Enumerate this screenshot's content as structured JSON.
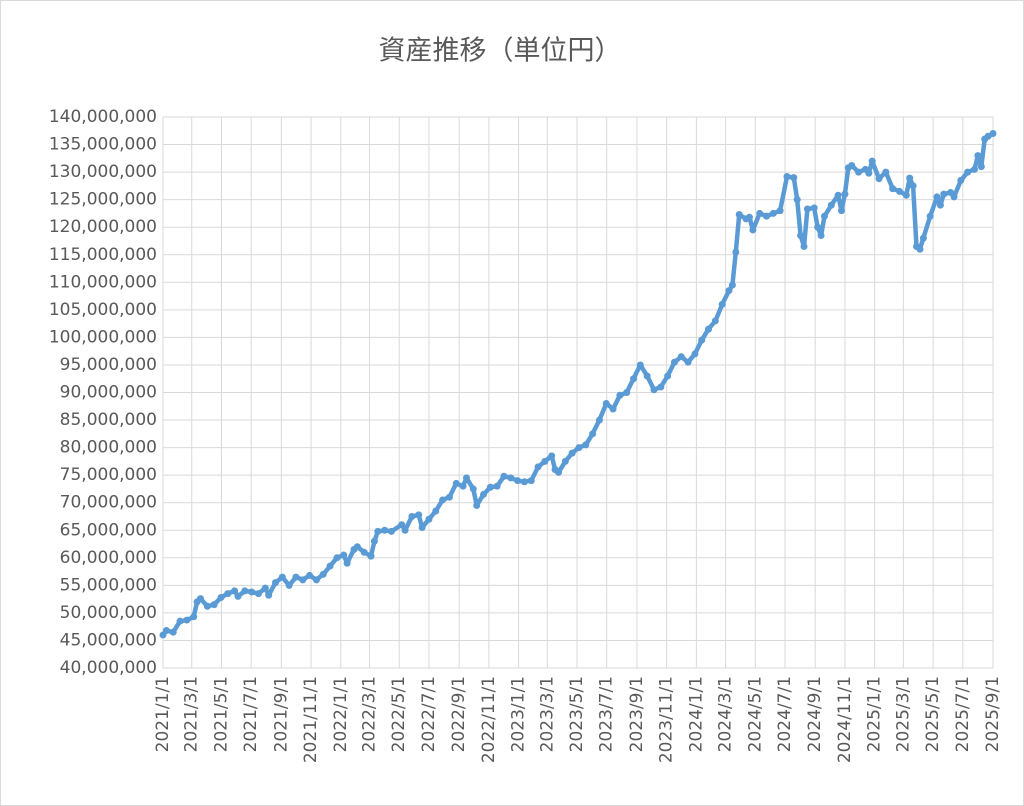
{
  "chart_data": {
    "type": "line",
    "title": "資産推移（単位円）",
    "color": "#5b9bd5",
    "grid": true,
    "x": [
      "2021/1/1",
      "2021/1/8",
      "2021/1/22",
      "2021/2/5",
      "2021/2/19",
      "2021/3/5",
      "2021/3/12",
      "2021/3/19",
      "2021/4/2",
      "2021/4/16",
      "2021/4/30",
      "2021/5/14",
      "2021/5/28",
      "2021/6/4",
      "2021/6/18",
      "2021/7/2",
      "2021/7/16",
      "2021/7/30",
      "2021/8/6",
      "2021/8/20",
      "2021/9/3",
      "2021/9/17",
      "2021/10/1",
      "2021/10/15",
      "2021/10/29",
      "2021/11/12",
      "2021/11/26",
      "2021/12/10",
      "2021/12/24",
      "2022/1/7",
      "2022/1/14",
      "2022/1/28",
      "2022/2/4",
      "2022/2/18",
      "2022/3/4",
      "2022/3/11",
      "2022/3/18",
      "2022/4/1",
      "2022/4/15",
      "2022/5/6",
      "2022/5/13",
      "2022/5/27",
      "2022/6/10",
      "2022/6/17",
      "2022/7/1",
      "2022/7/15",
      "2022/7/29",
      "2022/8/12",
      "2022/8/26",
      "2022/9/9",
      "2022/9/16",
      "2022/9/30",
      "2022/10/7",
      "2022/10/21",
      "2022/11/4",
      "2022/11/18",
      "2022/12/2",
      "2022/12/16",
      "2022/12/30",
      "2023/1/13",
      "2023/1/27",
      "2023/2/10",
      "2023/2/24",
      "2023/3/10",
      "2023/3/17",
      "2023/3/24",
      "2023/4/7",
      "2023/4/21",
      "2023/5/5",
      "2023/5/19",
      "2023/6/2",
      "2023/6/16",
      "2023/6/30",
      "2023/7/14",
      "2023/7/28",
      "2023/8/11",
      "2023/8/25",
      "2023/9/8",
      "2023/9/22",
      "2023/10/6",
      "2023/10/20",
      "2023/11/3",
      "2023/11/17",
      "2023/12/1",
      "2023/12/15",
      "2023/12/29",
      "2024/1/12",
      "2024/1/26",
      "2024/2/9",
      "2024/2/23",
      "2024/3/8",
      "2024/3/15",
      "2024/3/22",
      "2024/3/29",
      "2024/4/12",
      "2024/4/19",
      "2024/4/26",
      "2024/5/10",
      "2024/5/24",
      "2024/6/7",
      "2024/6/21",
      "2024/7/5",
      "2024/7/19",
      "2024/7/26",
      "2024/8/2",
      "2024/8/9",
      "2024/8/16",
      "2024/8/30",
      "2024/9/6",
      "2024/9/13",
      "2024/9/20",
      "2024/10/4",
      "2024/10/18",
      "2024/10/25",
      "2024/11/1",
      "2024/11/8",
      "2024/11/15",
      "2024/11/29",
      "2024/12/13",
      "2024/12/20",
      "2024/12/27",
      "2025/1/10",
      "2025/1/24",
      "2025/2/7",
      "2025/2/21",
      "2025/3/7",
      "2025/3/14",
      "2025/3/21",
      "2025/3/28",
      "2025/4/4",
      "2025/4/11",
      "2025/4/25",
      "2025/5/9",
      "2025/5/16",
      "2025/5/23",
      "2025/6/6",
      "2025/6/13",
      "2025/6/27",
      "2025/7/11",
      "2025/7/25",
      "2025/8/1",
      "2025/8/8",
      "2025/8/15",
      "2025/8/22",
      "2025/9/1"
    ],
    "values": [
      46000000,
      46800000,
      46500000,
      48500000,
      48700000,
      49300000,
      52000000,
      52600000,
      51200000,
      51500000,
      52800000,
      53500000,
      54000000,
      53000000,
      54000000,
      53800000,
      53500000,
      54500000,
      53200000,
      55500000,
      56500000,
      55000000,
      56500000,
      56000000,
      56800000,
      56000000,
      57000000,
      58500000,
      60000000,
      60500000,
      59000000,
      61500000,
      62000000,
      61000000,
      60300000,
      63000000,
      64800000,
      65000000,
      64800000,
      66000000,
      65000000,
      67500000,
      67800000,
      65500000,
      67000000,
      68500000,
      70500000,
      71000000,
      73500000,
      73000000,
      74500000,
      72500000,
      69500000,
      71500000,
      72800000,
      73000000,
      74800000,
      74500000,
      74000000,
      73800000,
      74000000,
      76500000,
      77500000,
      78500000,
      76000000,
      75500000,
      77500000,
      79000000,
      80000000,
      80500000,
      82500000,
      85000000,
      88000000,
      87000000,
      89500000,
      90000000,
      92500000,
      95000000,
      93000000,
      90500000,
      91000000,
      93000000,
      95500000,
      96500000,
      95500000,
      97000000,
      99500000,
      101500000,
      103000000,
      106000000,
      108500000,
      109500000,
      115500000,
      122300000,
      121500000,
      121800000,
      119500000,
      122500000,
      122000000,
      122500000,
      123000000,
      129200000,
      129000000,
      125000000,
      118500000,
      116500000,
      123300000,
      123500000,
      120000000,
      118500000,
      122000000,
      124000000,
      125800000,
      123000000,
      126000000,
      130800000,
      131200000,
      130000000,
      130500000,
      129800000,
      132000000,
      128800000,
      130000000,
      127000000,
      126500000,
      125800000,
      128900000,
      127500000,
      116500000,
      116000000,
      118000000,
      122000000,
      125500000,
      124000000,
      126000000,
      126300000,
      125500000,
      128500000,
      130000000,
      130500000,
      133000000,
      131000000,
      136000000,
      136500000,
      137000000
    ],
    "xlim": [
      "2021/1/1",
      "2025/9/1"
    ],
    "xticks": [
      "2021/1/1",
      "2021/3/1",
      "2021/5/1",
      "2021/7/1",
      "2021/9/1",
      "2021/11/1",
      "2022/1/1",
      "2022/3/1",
      "2022/5/1",
      "2022/7/1",
      "2022/9/1",
      "2022/11/1",
      "2023/1/1",
      "2023/3/1",
      "2023/5/1",
      "2023/7/1",
      "2023/9/1",
      "2023/11/1",
      "2024/1/1",
      "2024/3/1",
      "2024/5/1",
      "2024/7/1",
      "2024/9/1",
      "2024/11/1",
      "2025/1/1",
      "2025/3/1",
      "2025/5/1",
      "2025/7/1",
      "2025/9/1"
    ],
    "ylim": [
      40000000,
      140000000
    ],
    "yticks": [
      {
        "value": 40000000,
        "label": "40,000,000"
      },
      {
        "value": 45000000,
        "label": "45,000,000"
      },
      {
        "value": 50000000,
        "label": "50,000,000"
      },
      {
        "value": 55000000,
        "label": "55,000,000"
      },
      {
        "value": 60000000,
        "label": "60,000,000"
      },
      {
        "value": 65000000,
        "label": "65,000,000"
      },
      {
        "value": 70000000,
        "label": "70,000,000"
      },
      {
        "value": 75000000,
        "label": "75,000,000"
      },
      {
        "value": 80000000,
        "label": "80,000,000"
      },
      {
        "value": 85000000,
        "label": "85,000,000"
      },
      {
        "value": 90000000,
        "label": "90,000,000"
      },
      {
        "value": 95000000,
        "label": "95,000,000"
      },
      {
        "value": 100000000,
        "label": "100,000,000"
      },
      {
        "value": 105000000,
        "label": "105,000,000"
      },
      {
        "value": 110000000,
        "label": "110,000,000"
      },
      {
        "value": 115000000,
        "label": "115,000,000"
      },
      {
        "value": 120000000,
        "label": "120,000,000"
      },
      {
        "value": 125000000,
        "label": "125,000,000"
      },
      {
        "value": 130000000,
        "label": "130,000,000"
      },
      {
        "value": 135000000,
        "label": "135,000,000"
      },
      {
        "value": 140000000,
        "label": "140,000,000"
      }
    ]
  }
}
